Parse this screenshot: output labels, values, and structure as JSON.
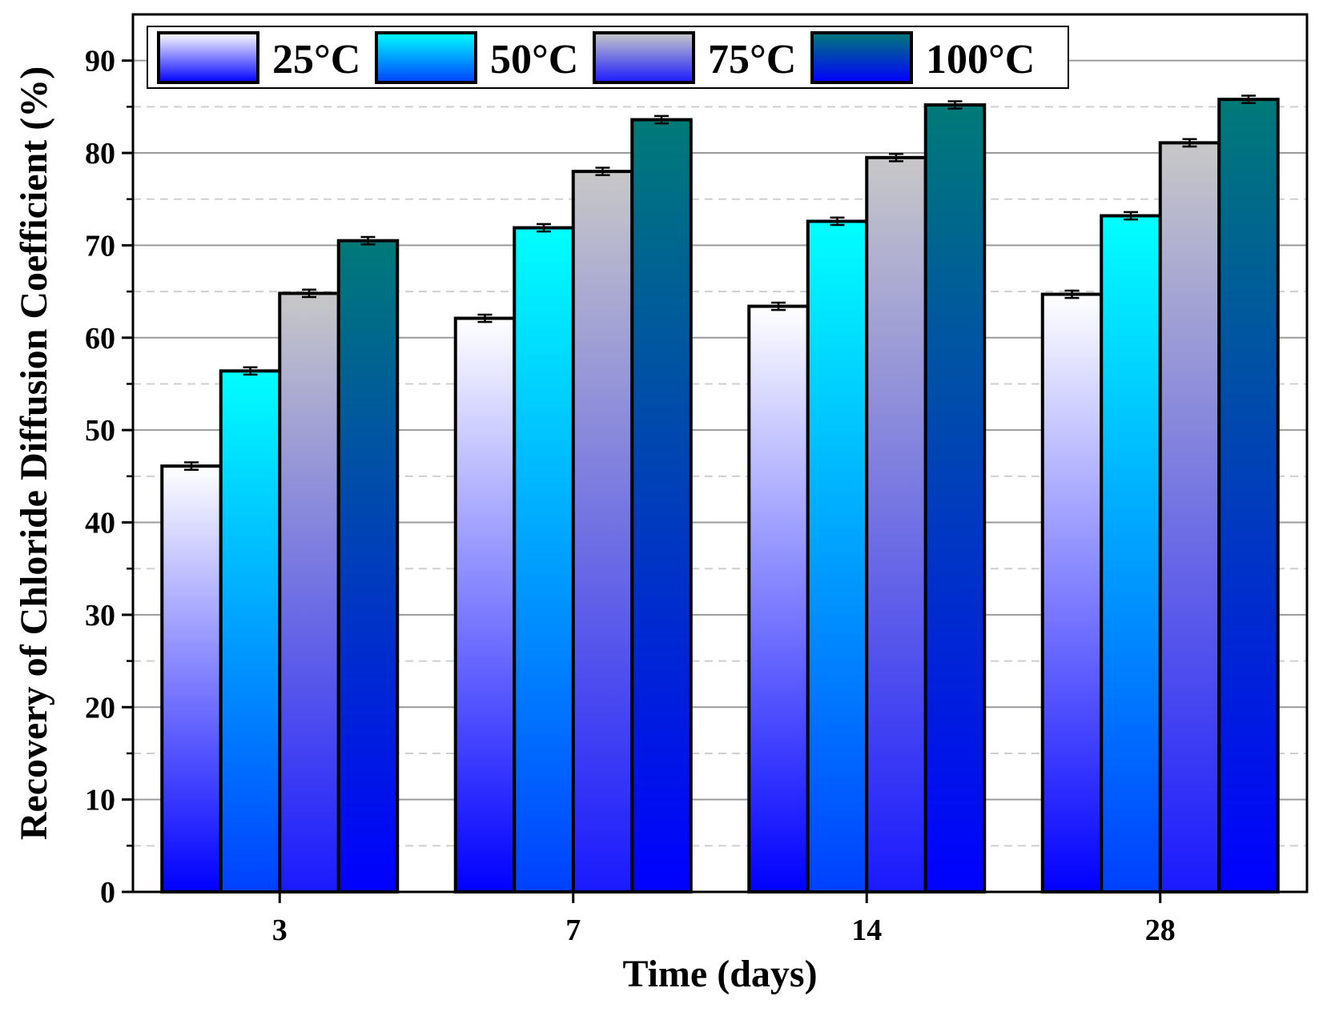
{
  "chart_data": {
    "type": "bar",
    "title": "",
    "xlabel": "Time (days)",
    "ylabel": "Recovery of Chloride Diffusion Coefficient (%)",
    "categories": [
      "3",
      "7",
      "14",
      "28"
    ],
    "ylim": [
      0,
      95
    ],
    "yticks": [
      0,
      10,
      20,
      30,
      40,
      50,
      60,
      70,
      80,
      90
    ],
    "grid": {
      "major": true,
      "minor_dashed": true
    },
    "legend_position": "top-left",
    "series": [
      {
        "name": "25°C",
        "values": [
          46.1,
          62.1,
          63.4,
          64.7
        ],
        "errors": [
          0.4,
          0.4,
          0.4,
          0.4
        ],
        "gradient": [
          "#ffffff",
          "#0000ff"
        ]
      },
      {
        "name": "50°C",
        "values": [
          56.4,
          71.9,
          72.6,
          73.2
        ],
        "errors": [
          0.4,
          0.4,
          0.4,
          0.4
        ],
        "gradient": [
          "#00ffff",
          "#0040ff"
        ]
      },
      {
        "name": "75°C",
        "values": [
          64.8,
          78.0,
          79.5,
          81.1
        ],
        "errors": [
          0.4,
          0.4,
          0.4,
          0.4
        ],
        "gradient": [
          "#c8c8c8",
          "#1a1aff"
        ]
      },
      {
        "name": "100°C",
        "values": [
          70.5,
          83.6,
          85.2,
          85.8
        ],
        "errors": [
          0.4,
          0.4,
          0.4,
          0.4
        ],
        "gradient": [
          "#007a78",
          "#0000ff"
        ]
      }
    ]
  }
}
